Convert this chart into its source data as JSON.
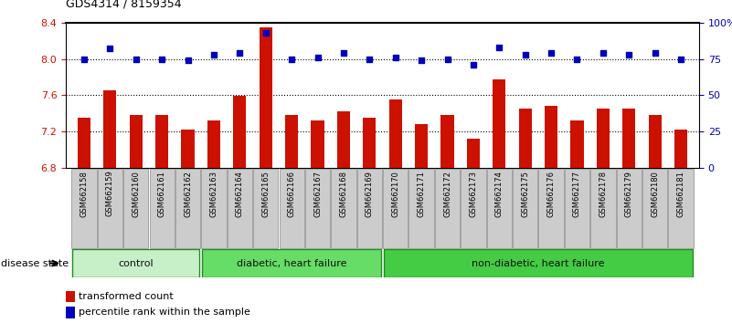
{
  "title": "GDS4314 / 8159354",
  "samples": [
    "GSM662158",
    "GSM662159",
    "GSM662160",
    "GSM662161",
    "GSM662162",
    "GSM662163",
    "GSM662164",
    "GSM662165",
    "GSM662166",
    "GSM662167",
    "GSM662168",
    "GSM662169",
    "GSM662170",
    "GSM662171",
    "GSM662172",
    "GSM662173",
    "GSM662174",
    "GSM662175",
    "GSM662176",
    "GSM662177",
    "GSM662178",
    "GSM662179",
    "GSM662180",
    "GSM662181"
  ],
  "bar_values": [
    7.35,
    7.65,
    7.38,
    7.38,
    7.22,
    7.32,
    7.59,
    8.35,
    7.38,
    7.32,
    7.42,
    7.35,
    7.55,
    7.28,
    7.38,
    7.12,
    7.78,
    7.45,
    7.48,
    7.32,
    7.45,
    7.45,
    7.38,
    7.22
  ],
  "percentile_values": [
    75,
    82,
    75,
    75,
    74,
    78,
    79,
    93,
    75,
    76,
    79,
    75,
    76,
    74,
    75,
    71,
    83,
    78,
    79,
    75,
    79,
    78,
    79,
    75
  ],
  "group_boundaries": [
    {
      "label": "control",
      "start": 0,
      "end": 4,
      "color": "#C8F0C8"
    },
    {
      "label": "diabetic, heart failure",
      "start": 5,
      "end": 11,
      "color": "#66DD66"
    },
    {
      "label": "non-diabetic, heart failure",
      "start": 12,
      "end": 23,
      "color": "#44CC44"
    }
  ],
  "ylim_left": [
    6.8,
    8.4
  ],
  "ylim_right": [
    0,
    100
  ],
  "bar_color": "#CC1100",
  "dot_color": "#0000BB",
  "yticks_left": [
    6.8,
    7.2,
    7.6,
    8.0,
    8.4
  ],
  "yticks_right": [
    0,
    25,
    50,
    75,
    100
  ],
  "ytick_labels_right": [
    "0",
    "25",
    "50",
    "75",
    "100%"
  ],
  "tick_bg_color": "#CCCCCC",
  "tick_edge_color": "#888888",
  "group_edge_color": "#228B22"
}
